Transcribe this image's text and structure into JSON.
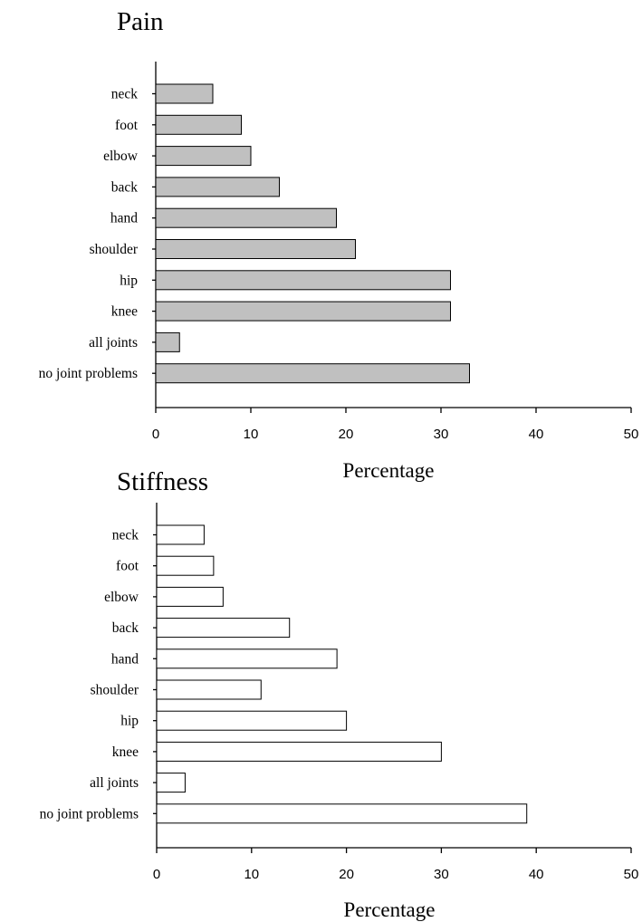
{
  "chart_data": [
    {
      "type": "bar",
      "orientation": "horizontal",
      "title": "Pain",
      "xlabel": "Percentage",
      "ylabel": "",
      "xlim": [
        0,
        50
      ],
      "xticks": [
        0,
        10,
        20,
        30,
        40,
        50
      ],
      "grid": false,
      "bar_color": "#c0c0c0",
      "categories": [
        "neck",
        "foot",
        "elbow",
        "back",
        "hand",
        "shoulder",
        "hip",
        "knee",
        "all joints",
        "no joint problems"
      ],
      "values": [
        6,
        9,
        10,
        13,
        19,
        21,
        31,
        31,
        2.5,
        33
      ]
    },
    {
      "type": "bar",
      "orientation": "horizontal",
      "title": "Stiffness",
      "xlabel": "Percentage",
      "ylabel": "",
      "xlim": [
        0,
        50
      ],
      "xticks": [
        0,
        10,
        20,
        30,
        40,
        50
      ],
      "grid": false,
      "bar_color": "#ffffff",
      "categories": [
        "neck",
        "foot",
        "elbow",
        "back",
        "hand",
        "shoulder",
        "hip",
        "knee",
        "all joints",
        "no joint problems"
      ],
      "values": [
        5,
        6,
        7,
        14,
        19,
        11,
        20,
        30,
        3,
        39
      ]
    }
  ]
}
